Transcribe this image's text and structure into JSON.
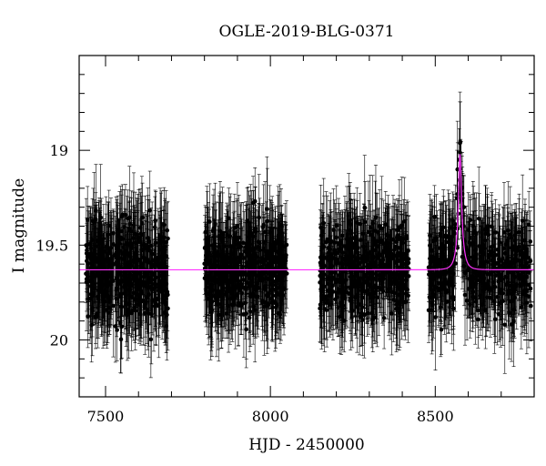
{
  "chart_data": {
    "type": "scatter",
    "title": "OGLE-2019-BLG-0371",
    "xlabel": "HJD - 2450000",
    "ylabel": "I magnitude",
    "xlim": [
      7420,
      8800
    ],
    "ylim": [
      20.3,
      18.5
    ],
    "y_inverted": true,
    "xticks": [
      7500,
      8000,
      8500
    ],
    "yticks": [
      19,
      19.5,
      20
    ],
    "grid": false,
    "colors": {
      "points": "#000000",
      "model": "#ff33ff",
      "frame": "#000000"
    },
    "series": [
      {
        "kind": "observations",
        "seasons": [
          {
            "x_range": [
              7440,
              7690
            ],
            "mean_mag": 19.65,
            "scatter": 0.18
          },
          {
            "x_range": [
              7800,
              8050
            ],
            "mean_mag": 19.65,
            "scatter": 0.16
          },
          {
            "x_range": [
              8150,
              8420
            ],
            "mean_mag": 19.66,
            "scatter": 0.16
          },
          {
            "x_range": [
              8480,
              8790
            ],
            "mean_mag": 19.62,
            "scatter": 0.16
          }
        ]
      },
      {
        "kind": "model",
        "baseline": 19.63,
        "peak_x": 8575,
        "peak_mag": 19.02,
        "t_E": 18
      }
    ]
  }
}
